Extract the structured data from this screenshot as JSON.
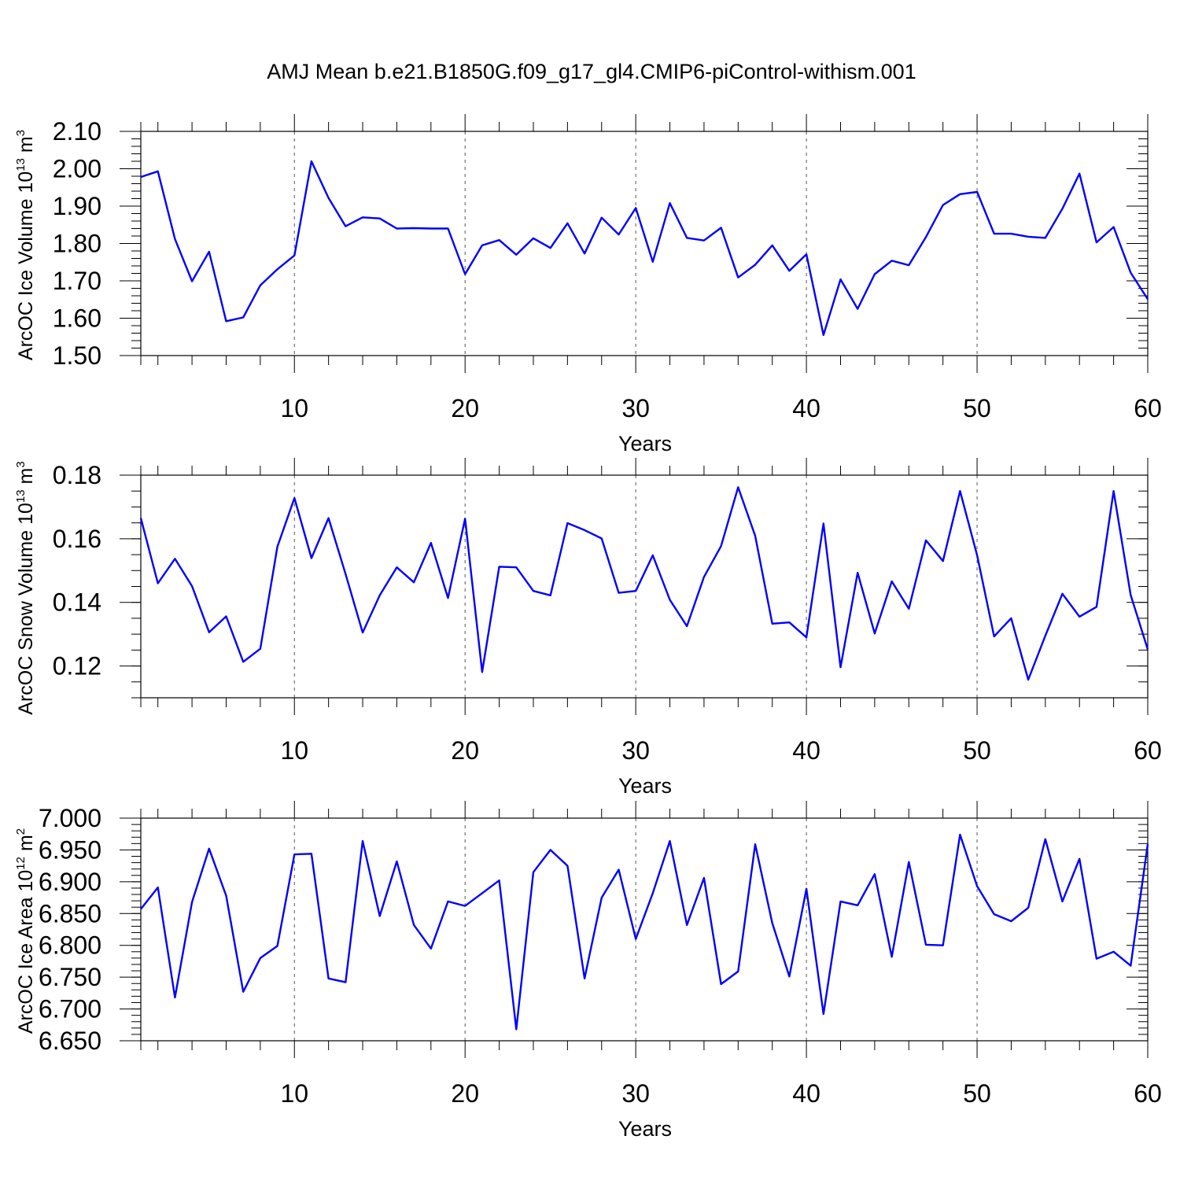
{
  "figure": {
    "title": "AMJ Mean b.e21.B1850G.f09_g17_gl4.CMIP6-piControl-withism.001"
  },
  "colors": {
    "line": "#0000ff",
    "axis": "#000000",
    "grid": "#555555"
  },
  "chart_data": [
    {
      "type": "line",
      "title": "AMJ Mean b.e21.B1850G.f09_g17_gl4.CMIP6-piControl-withism.001",
      "ylabel": "ArcOC Ice Volume 10",
      "ylabel_exponent": "13",
      "ylabel_unit": "m",
      "ylabel_unit_exponent": "3",
      "xlabel": "Years",
      "xlim": [
        1,
        60
      ],
      "ylim": [
        1.5,
        2.1
      ],
      "xticks": [
        10,
        20,
        30,
        40,
        50,
        60
      ],
      "yticks": [
        1.5,
        1.6,
        1.7,
        1.8,
        1.9,
        2.0,
        2.1
      ],
      "ytick_labels": [
        "1.50",
        "1.60",
        "1.70",
        "1.80",
        "1.90",
        "2.00",
        "2.10"
      ],
      "ytick_minor": 0.02,
      "grid": "vertical-dashed",
      "x": [
        1,
        2,
        3,
        4,
        5,
        6,
        7,
        8,
        9,
        10,
        11,
        12,
        13,
        14,
        15,
        16,
        17,
        18,
        19,
        20,
        21,
        22,
        23,
        24,
        25,
        26,
        27,
        28,
        29,
        30,
        31,
        32,
        33,
        34,
        35,
        36,
        37,
        38,
        39,
        40,
        41,
        42,
        43,
        44,
        45,
        46,
        47,
        48,
        49,
        50,
        51,
        52,
        53,
        54,
        55,
        56,
        57,
        58,
        59,
        60
      ],
      "series": [
        {
          "values": [
            1.978,
            1.993,
            1.812,
            1.699,
            1.778,
            1.592,
            1.602,
            1.688,
            1.731,
            1.768,
            2.02,
            1.922,
            1.846,
            1.87,
            1.867,
            1.84,
            1.841,
            1.84,
            1.84,
            1.718,
            1.795,
            1.809,
            1.77,
            1.814,
            1.788,
            1.854,
            1.773,
            1.869,
            1.824,
            1.895,
            1.751,
            1.908,
            1.815,
            1.808,
            1.842,
            1.709,
            1.743,
            1.795,
            1.727,
            1.771,
            1.555,
            1.704,
            1.625,
            1.718,
            1.754,
            1.742,
            1.817,
            1.903,
            1.932,
            1.938,
            1.826,
            1.826,
            1.818,
            1.815,
            1.893,
            1.987,
            1.803,
            1.844,
            1.722,
            1.651
          ]
        }
      ]
    },
    {
      "type": "line",
      "ylabel": "ArcOC Snow Volume 10",
      "ylabel_exponent": "13",
      "ylabel_unit": "m",
      "ylabel_unit_exponent": "3",
      "xlabel": "Years",
      "xlim": [
        1,
        60
      ],
      "ylim": [
        0.11,
        0.18
      ],
      "xticks": [
        10,
        20,
        30,
        40,
        50,
        60
      ],
      "yticks": [
        0.12,
        0.14,
        0.16,
        0.18
      ],
      "ytick_labels": [
        "0.12",
        "0.14",
        "0.16",
        "0.18"
      ],
      "ytick_minor": 0.005,
      "grid": "vertical-dashed",
      "x": [
        1,
        2,
        3,
        4,
        5,
        6,
        7,
        8,
        9,
        10,
        11,
        12,
        13,
        14,
        15,
        16,
        17,
        18,
        19,
        20,
        21,
        22,
        23,
        24,
        25,
        26,
        27,
        28,
        29,
        30,
        31,
        32,
        33,
        34,
        35,
        36,
        37,
        38,
        39,
        40,
        41,
        42,
        43,
        44,
        45,
        46,
        47,
        48,
        49,
        50,
        51,
        52,
        53,
        54,
        55,
        56,
        57,
        58,
        59,
        60
      ],
      "series": [
        {
          "values": [
            0.1665,
            0.146,
            0.1537,
            0.1451,
            0.1306,
            0.1356,
            0.1213,
            0.1254,
            0.1575,
            0.1728,
            0.1539,
            0.1665,
            0.1489,
            0.1305,
            0.1422,
            0.151,
            0.1463,
            0.1587,
            0.1414,
            0.1663,
            0.1181,
            0.1512,
            0.151,
            0.1436,
            0.1422,
            0.1649,
            0.1627,
            0.1601,
            0.143,
            0.1436,
            0.1548,
            0.1408,
            0.1325,
            0.148,
            0.1577,
            0.1762,
            0.1609,
            0.1333,
            0.1337,
            0.129,
            0.1648,
            0.1196,
            0.1493,
            0.1302,
            0.1466,
            0.138,
            0.1595,
            0.153,
            0.175,
            0.1548,
            0.1293,
            0.135,
            0.1157,
            0.1295,
            0.1427,
            0.1355,
            0.1386,
            0.175,
            0.1423,
            0.1252
          ]
        }
      ]
    },
    {
      "type": "line",
      "ylabel": "ArcOC Ice Area 10",
      "ylabel_exponent": "12",
      "ylabel_unit": "m",
      "ylabel_unit_exponent": "2",
      "xlabel": "Years",
      "xlim": [
        1,
        60
      ],
      "ylim": [
        6.65,
        7.0
      ],
      "xticks": [
        10,
        20,
        30,
        40,
        50,
        60
      ],
      "yticks": [
        6.65,
        6.7,
        6.75,
        6.8,
        6.85,
        6.9,
        6.95,
        7.0
      ],
      "ytick_labels": [
        "6.650",
        "6.700",
        "6.750",
        "6.800",
        "6.850",
        "6.900",
        "6.950",
        "7.000"
      ],
      "ytick_minor": 0.01,
      "grid": "vertical-dashed",
      "x": [
        1,
        2,
        3,
        4,
        5,
        6,
        7,
        8,
        9,
        10,
        11,
        12,
        13,
        14,
        15,
        16,
        17,
        18,
        19,
        20,
        21,
        22,
        23,
        24,
        25,
        26,
        27,
        28,
        29,
        30,
        31,
        32,
        33,
        34,
        35,
        36,
        37,
        38,
        39,
        40,
        41,
        42,
        43,
        44,
        45,
        46,
        47,
        48,
        49,
        50,
        51,
        52,
        53,
        54,
        55,
        56,
        57,
        58,
        59,
        60
      ],
      "series": [
        {
          "values": [
            6.857,
            6.891,
            6.718,
            6.868,
            6.952,
            6.878,
            6.727,
            6.78,
            6.799,
            6.943,
            6.944,
            6.748,
            6.742,
            6.964,
            6.846,
            6.932,
            6.832,
            6.795,
            6.869,
            6.862,
            6.882,
            6.902,
            6.668,
            6.915,
            6.95,
            6.925,
            6.748,
            6.875,
            6.919,
            6.81,
            6.882,
            6.964,
            6.832,
            6.906,
            6.739,
            6.759,
            6.959,
            6.835,
            6.751,
            6.889,
            6.692,
            6.869,
            6.863,
            6.912,
            6.782,
            6.931,
            6.801,
            6.8,
            6.974,
            6.893,
            6.849,
            6.838,
            6.859,
            6.967,
            6.869,
            6.936,
            6.779,
            6.79,
            6.768,
            6.959
          ]
        }
      ]
    }
  ]
}
